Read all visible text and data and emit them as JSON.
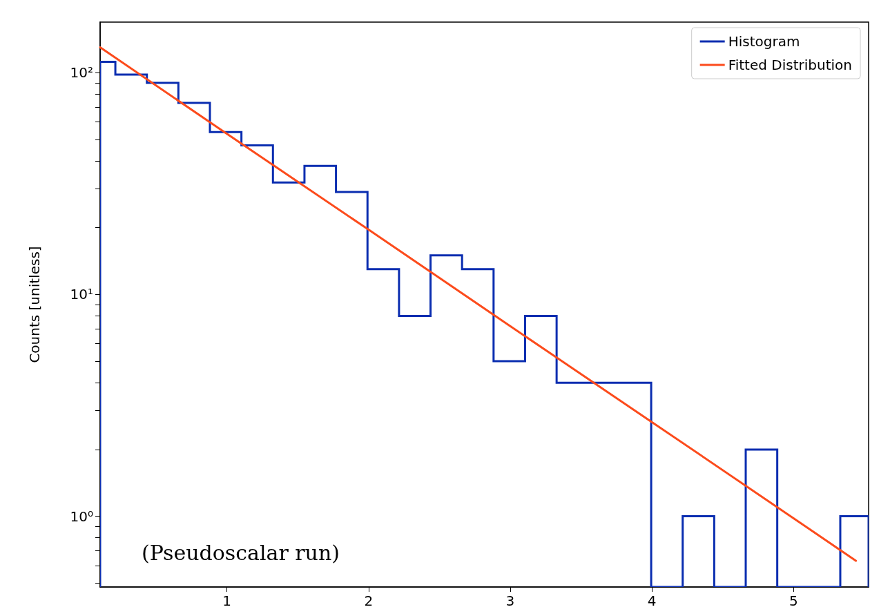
{
  "chart_data": {
    "type": "histogram",
    "ylabel": "Counts [unitless]",
    "annotations": [
      "(Pseudoscalar run)"
    ],
    "series": [
      {
        "name": "Histogram",
        "color": "#0a2db0",
        "bins": [
          0.105,
          0.2125,
          0.435,
          0.6575,
          0.88,
          1.1025,
          1.325,
          1.5475,
          1.77,
          1.9925,
          2.215,
          2.4375,
          2.66,
          2.8825,
          3.105,
          3.3275,
          3.55,
          3.7725,
          3.995,
          4.2175,
          4.44,
          4.6625,
          4.885,
          5.1075,
          5.33,
          5.53
        ],
        "values": [
          112,
          98,
          90,
          73,
          54,
          47,
          32,
          38,
          29,
          13,
          8,
          15,
          13,
          5,
          8,
          4,
          4,
          4,
          null,
          1,
          null,
          2,
          null,
          null,
          1
        ]
      },
      {
        "name": "Fitted Distribution",
        "type": "line",
        "color": "#fc4b1c",
        "x": [
          0.105,
          1,
          2,
          3,
          4,
          5,
          5.44
        ],
        "values": [
          130,
          53,
          19.6,
          7.2,
          2.66,
          0.98,
          0.63
        ]
      }
    ],
    "xlim": [
      0.105,
      5.53
    ],
    "ylim": [
      0.48,
      169
    ],
    "xticks": [
      1,
      2,
      3,
      4,
      5
    ],
    "yticks": [
      {
        "value": 0.5,
        "label": null
      },
      {
        "value": 0.6,
        "label": null
      },
      {
        "value": 0.7,
        "label": null
      },
      {
        "value": 0.8,
        "label": null
      },
      {
        "value": 0.9,
        "label": null
      },
      {
        "value": 1,
        "label": "10⁰"
      },
      {
        "value": 2,
        "label": null
      },
      {
        "value": 3,
        "label": null
      },
      {
        "value": 4,
        "label": null
      },
      {
        "value": 5,
        "label": null
      },
      {
        "value": 6,
        "label": null
      },
      {
        "value": 7,
        "label": null
      },
      {
        "value": 8,
        "label": null
      },
      {
        "value": 9,
        "label": null
      },
      {
        "value": 10,
        "label": "10¹"
      },
      {
        "value": 20,
        "label": null
      },
      {
        "value": 30,
        "label": null
      },
      {
        "value": 40,
        "label": null
      },
      {
        "value": 50,
        "label": null
      },
      {
        "value": 60,
        "label": null
      },
      {
        "value": 70,
        "label": null
      },
      {
        "value": 80,
        "label": null
      },
      {
        "value": 90,
        "label": null
      },
      {
        "value": 100,
        "label": "10²"
      }
    ],
    "log": "y",
    "grid": false,
    "legend": "top right",
    "marker": "none",
    "line_style": "solid"
  }
}
